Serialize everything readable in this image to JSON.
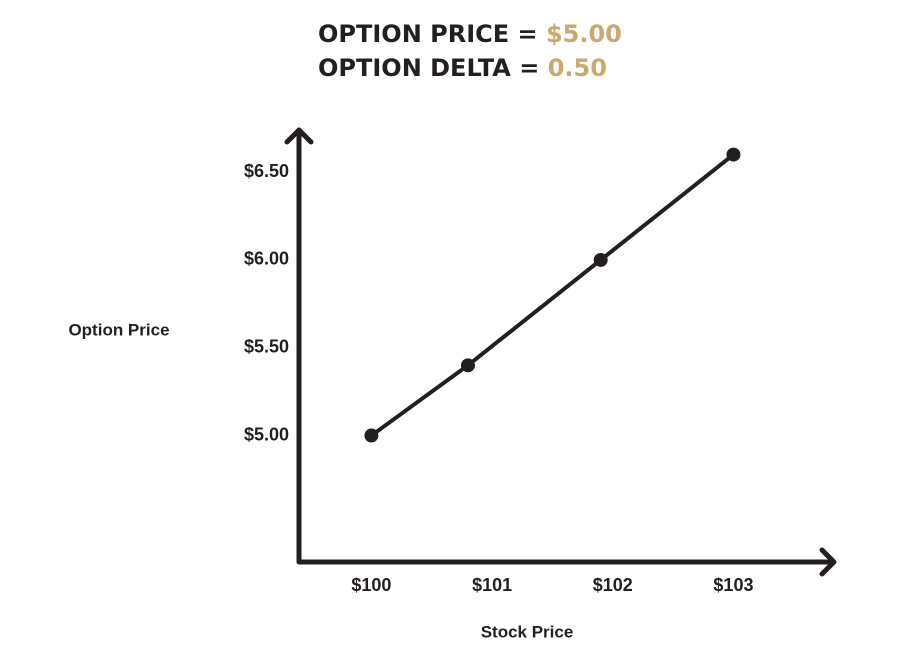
{
  "chart_data": {
    "type": "line",
    "title_lines": [
      {
        "label": "OPTION PRICE =",
        "value": "$5.00"
      },
      {
        "label": "OPTION DELTA =",
        "value": "0.50"
      }
    ],
    "x_label": "Stock Price",
    "y_label": "Option Price",
    "x": [
      100,
      100.8,
      101.9,
      103
    ],
    "values": [
      5.0,
      5.4,
      6.0,
      6.6
    ],
    "color": "#231f20",
    "highlight_color": "#c9a96e",
    "xlim": [
      99.4,
      103.8
    ],
    "ylim": [
      4.28,
      6.74
    ],
    "xticks": [
      {
        "value": 100,
        "label": "$100"
      },
      {
        "value": 101,
        "label": "$101"
      },
      {
        "value": 102,
        "label": "$102"
      },
      {
        "value": 103,
        "label": "$103"
      }
    ],
    "yticks": [
      {
        "value": 5.0,
        "label": "$5.00"
      },
      {
        "value": 5.5,
        "label": "$5.50"
      },
      {
        "value": 6.0,
        "label": "$6.00"
      },
      {
        "value": 6.5,
        "label": "$6.50"
      }
    ],
    "grid": false
  }
}
